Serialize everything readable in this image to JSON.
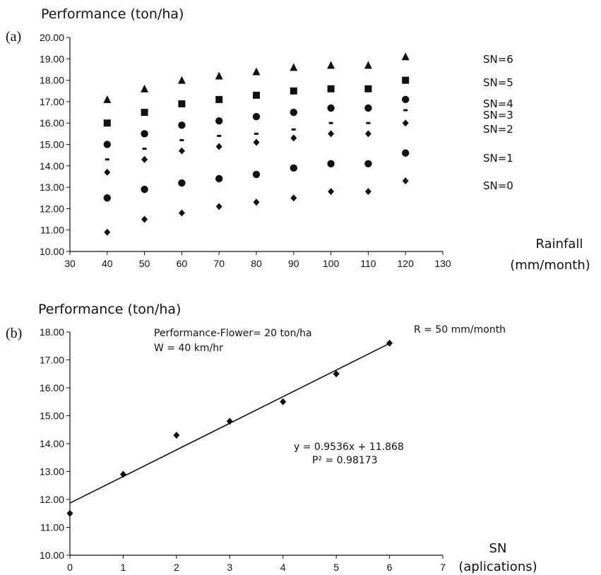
{
  "chart_data": [
    {
      "type": "scatter",
      "panel_label": "(a)",
      "ylabel": "Performance (ton/ha)",
      "xlabel_line1": "Rainfall",
      "xlabel_line2": "(mm/month)",
      "xlim": [
        30,
        130
      ],
      "ylim": [
        10,
        20
      ],
      "x_ticks": [
        "30",
        "40",
        "50",
        "60",
        "70",
        "80",
        "90",
        "100",
        "110",
        "120",
        "130"
      ],
      "y_ticks": [
        "10.00",
        "11.00",
        "12.00",
        "13.00",
        "14.00",
        "15.00",
        "16.00",
        "17.00",
        "18.00",
        "19.00",
        "20.00"
      ],
      "x": [
        40,
        50,
        60,
        70,
        80,
        90,
        100,
        110,
        120
      ],
      "series": [
        {
          "name": "SN=6",
          "marker": "triangle",
          "values": [
            17.1,
            17.6,
            18.0,
            18.2,
            18.4,
            18.6,
            18.7,
            18.7,
            19.1
          ]
        },
        {
          "name": "SN=5",
          "marker": "square",
          "values": [
            16.0,
            16.5,
            16.9,
            17.1,
            17.3,
            17.5,
            17.6,
            17.6,
            18.0
          ]
        },
        {
          "name": "SN=4",
          "marker": "circle",
          "values": [
            15.0,
            15.5,
            15.9,
            16.1,
            16.3,
            16.5,
            16.7,
            16.7,
            17.1
          ]
        },
        {
          "name": "SN=3",
          "marker": "dash",
          "values": [
            14.3,
            14.8,
            15.2,
            15.4,
            15.5,
            15.7,
            16.0,
            16.0,
            16.6
          ]
        },
        {
          "name": "SN=2",
          "marker": "diamond",
          "values": [
            13.7,
            14.3,
            14.7,
            14.9,
            15.1,
            15.3,
            15.5,
            15.5,
            16.0
          ]
        },
        {
          "name": "SN=1",
          "marker": "circle",
          "values": [
            12.5,
            12.9,
            13.2,
            13.4,
            13.6,
            13.9,
            14.1,
            14.1,
            14.6
          ]
        },
        {
          "name": "SN=0",
          "marker": "diamond",
          "values": [
            10.9,
            11.5,
            11.8,
            12.1,
            12.3,
            12.5,
            12.8,
            12.8,
            13.3
          ]
        }
      ]
    },
    {
      "type": "scatter",
      "panel_label": "(b)",
      "ylabel": "Performance (ton/ha)",
      "xlabel_line1": "SN",
      "xlabel_line2": "(aplications)",
      "xlim": [
        0,
        7
      ],
      "ylim": [
        10,
        18
      ],
      "x_ticks": [
        "0",
        "1",
        "2",
        "3",
        "4",
        "5",
        "6",
        "7"
      ],
      "y_ticks": [
        "10.00",
        "11.00",
        "12.00",
        "13.00",
        "14.00",
        "15.00",
        "16.00",
        "17.00",
        "18.00"
      ],
      "x": [
        0,
        1,
        2,
        3,
        4,
        5,
        6
      ],
      "values": [
        11.5,
        12.9,
        14.3,
        14.8,
        15.5,
        16.5,
        17.6
      ],
      "trendline": {
        "slope": 0.9536,
        "intercept": 11.868
      },
      "annotations": {
        "flower": "Performance-Flower= 20 ton/ha",
        "wind": "W = 40 km/hr",
        "rain": "R = 50 mm/month",
        "equation": "y = 0.9536x + 11.868",
        "r2": "P² = 0.98173"
      }
    }
  ]
}
